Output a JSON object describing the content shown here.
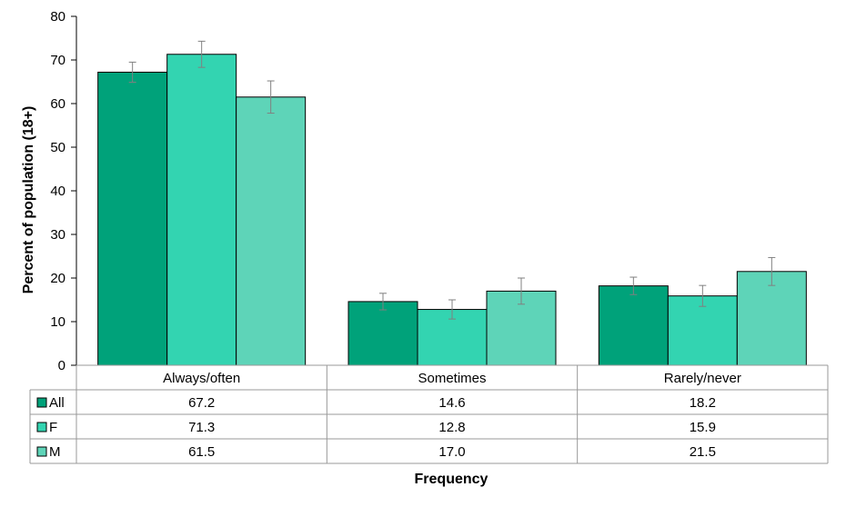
{
  "chart_data": {
    "type": "bar",
    "categories": [
      "Always/often",
      "Sometimes",
      "Rarely/never"
    ],
    "series": [
      {
        "name": "All",
        "values": [
          67.2,
          14.6,
          18.2
        ],
        "error_low": [
          64.9,
          12.7,
          16.2
        ],
        "error_high": [
          69.5,
          16.5,
          20.2
        ],
        "color": "#00A27A"
      },
      {
        "name": "F",
        "values": [
          71.3,
          12.8,
          15.9
        ],
        "error_low": [
          68.3,
          10.6,
          13.5
        ],
        "error_high": [
          74.3,
          15.0,
          18.3
        ],
        "color": "#33D4B1"
      },
      {
        "name": "M",
        "values": [
          61.5,
          17.0,
          21.5
        ],
        "error_low": [
          57.8,
          14.0,
          18.3
        ],
        "error_high": [
          65.2,
          20.0,
          24.7
        ],
        "color": "#5ED4B8"
      }
    ],
    "xlabel": "Frequency",
    "ylabel": "Percent of population (18+)",
    "ylim": [
      0,
      80
    ],
    "yticks": [
      "0",
      "10",
      "20",
      "30",
      "40",
      "50",
      "60",
      "70",
      "80"
    ],
    "data_table": {
      "rows": [
        {
          "label": "All",
          "cells": [
            "67.2",
            "14.6",
            "18.2"
          ]
        },
        {
          "label": "F",
          "cells": [
            "71.3",
            "12.8",
            "15.9"
          ]
        },
        {
          "label": "M",
          "cells": [
            "61.5",
            "17.0",
            "21.5"
          ]
        }
      ]
    },
    "grid": false,
    "legend": "data-table-left"
  }
}
